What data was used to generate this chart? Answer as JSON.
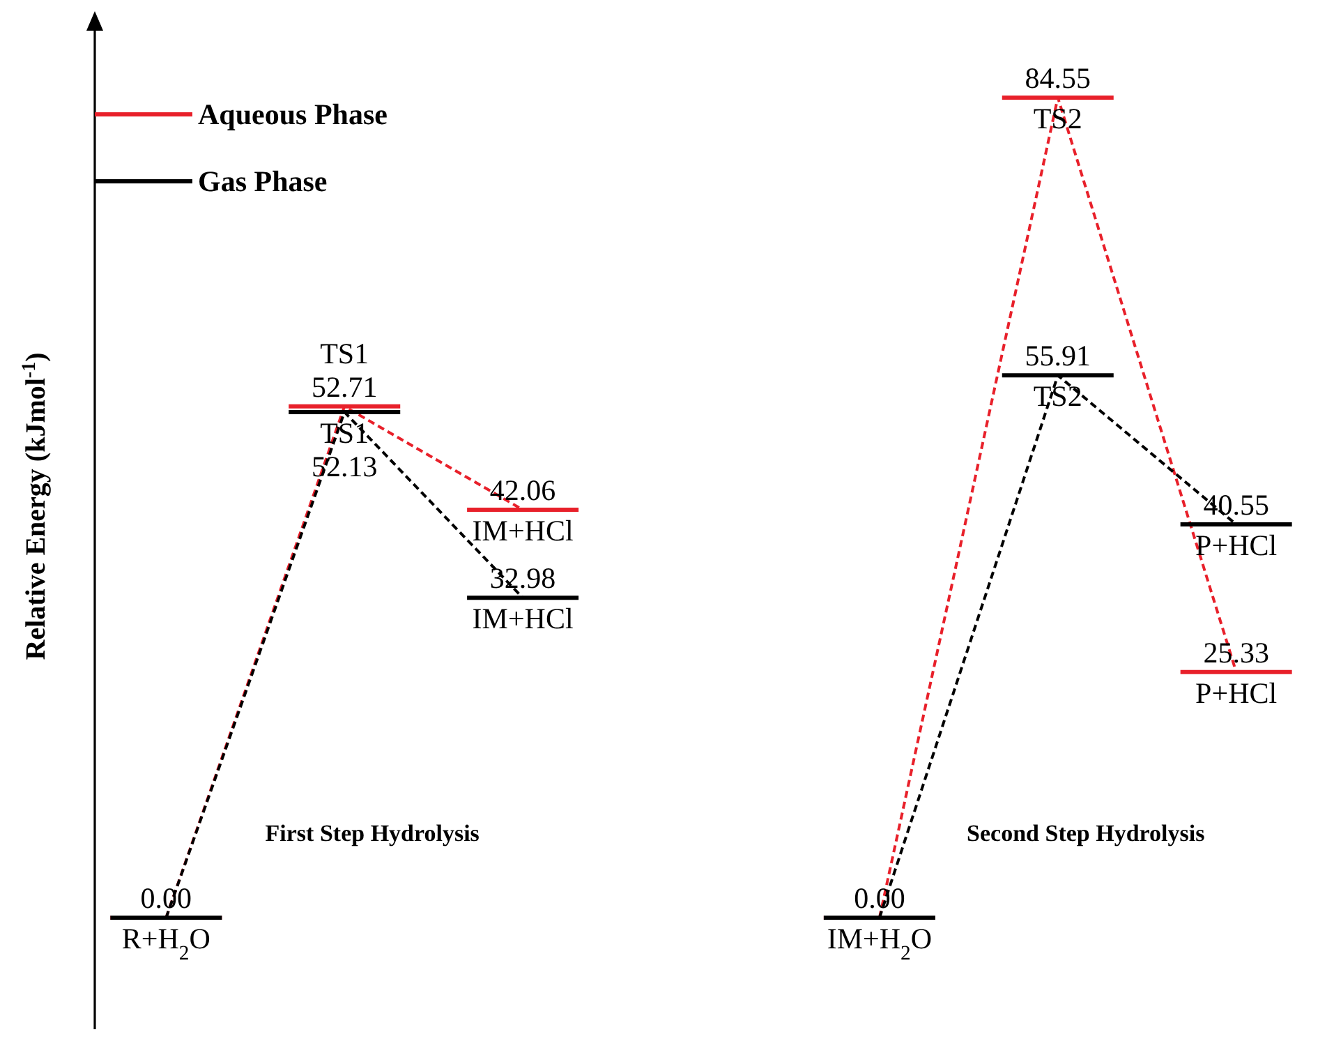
{
  "chart_data": {
    "type": "line",
    "ylabel": "Relative Energy (kJmol$^{-1}$)",
    "categories": [
      "R+H$_{2}$O",
      "TS1",
      "IM+HCl",
      null,
      "IM+H$_{2}$O",
      "TS2",
      "P+HCl"
    ],
    "tick_labels": false,
    "legend": "top left",
    "line_style": "dashed",
    "annotations": [
      "First Step Hydrolysis",
      "Second Step Hydrolysis"
    ],
    "series": [
      {
        "name": "Aqueous Phase",
        "color": "#e8202a",
        "values": [
          0,
          52.71,
          42.06,
          null,
          0,
          84.55,
          25.33
        ],
        "value_labels": [
          null,
          "52.71",
          "42.06",
          null,
          null,
          "84.55",
          "25.33"
        ]
      },
      {
        "name": "Gas Phase",
        "color": "#000000",
        "values": [
          0,
          52.13,
          32.98,
          null,
          0,
          55.91,
          40.55
        ],
        "value_labels": [
          "0.00",
          "52.13",
          "32.98",
          null,
          "0.00",
          "55.91",
          "40.55"
        ]
      }
    ]
  }
}
